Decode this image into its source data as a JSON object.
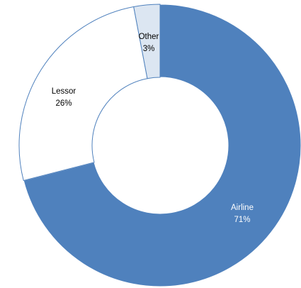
{
  "chart_data": {
    "type": "pie",
    "title": "",
    "slices": [
      {
        "label": "Airline",
        "value": 71,
        "value_text": "71%",
        "color": "#4f81bd",
        "stroke": "#ffffff",
        "label_color": "#ffffff"
      },
      {
        "label": "Lessor",
        "value": 26,
        "value_text": "26%",
        "color": "#ffffff",
        "stroke": "#4f81bd",
        "label_color": "#000000"
      },
      {
        "label": "Other",
        "value": 3,
        "value_text": "3%",
        "color": "#dce6f2",
        "stroke": "#4f81bd",
        "label_color": "#000000"
      }
    ],
    "start": "12 o'clock",
    "direction": "clockwise",
    "donut": true,
    "legend": "none"
  }
}
